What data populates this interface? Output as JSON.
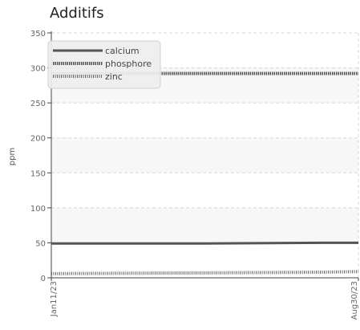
{
  "chart_data": {
    "type": "line",
    "title": "Additifs",
    "ylabel": "ppm",
    "xlabel": "",
    "x_tick_labels": [
      "Jan11/23",
      "Aug30/23"
    ],
    "y_ticks": [
      0,
      50,
      100,
      150,
      200,
      250,
      300,
      350
    ],
    "ylim": [
      0,
      350
    ],
    "xlim": [
      "2023-01-11",
      "2023-08-30"
    ],
    "grid": true,
    "legend_position": "top-left",
    "x": [
      "2023-01-11",
      "2023-05-01",
      "2023-08-04",
      "2023-08-30"
    ],
    "series": [
      {
        "name": "calcium",
        "values": [
          49,
          49,
          50,
          50
        ],
        "color": "#555555",
        "style": "solid"
      },
      {
        "name": "phosphore",
        "values": [
          292,
          292,
          292,
          292
        ],
        "color": "#555555",
        "style": "dense-dotted"
      },
      {
        "name": "zinc",
        "values": [
          6,
          7,
          8,
          9
        ],
        "color": "#666666",
        "style": "hatched"
      }
    ]
  }
}
